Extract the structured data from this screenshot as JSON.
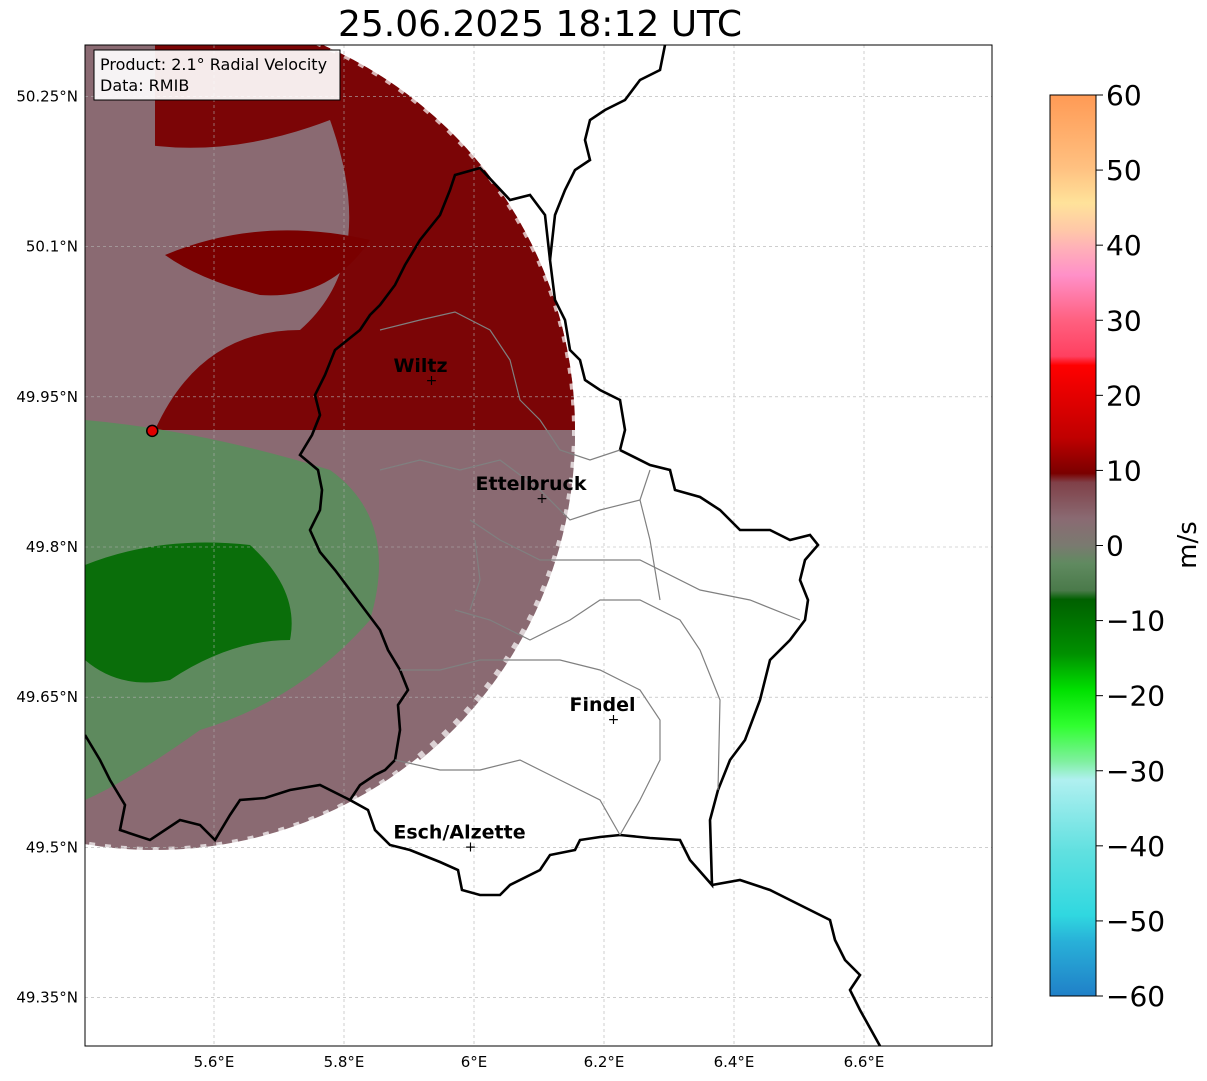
{
  "title": "25.06.2025 18:12 UTC",
  "info_box": {
    "product": "Product: 2.1° Radial Velocity",
    "source": "Data: RMIB"
  },
  "axes": {
    "x_ticks": [
      "5.6°E",
      "5.8°E",
      "6°E",
      "6.2°E",
      "6.4°E",
      "6.6°E"
    ],
    "x_values": [
      5.6,
      5.8,
      6.0,
      6.2,
      6.4,
      6.6
    ],
    "y_ticks": [
      "50.25°N",
      "50.1°N",
      "49.95°N",
      "49.8°N",
      "49.65°N",
      "49.5°N",
      "49.35°N"
    ],
    "y_values": [
      50.25,
      50.1,
      49.95,
      49.8,
      49.65,
      49.5,
      49.35
    ],
    "lon_range": [
      5.4,
      6.8
    ],
    "lat_range": [
      49.3,
      50.3
    ],
    "grid": true
  },
  "cities": [
    {
      "name": "Wiltz",
      "lon": 5.93,
      "lat": 49.966
    },
    {
      "name": "Ettelbruck",
      "lon": 6.1,
      "lat": 49.848
    },
    {
      "name": "Findel",
      "lon": 6.21,
      "lat": 49.627
    },
    {
      "name": "Esch/Alzette",
      "lon": 5.99,
      "lat": 49.5
    }
  ],
  "radar_site": {
    "lon": 5.505,
    "lat": 49.916
  },
  "colorbar": {
    "label": "m/s",
    "min": -60,
    "max": 60,
    "ticks": [
      "60",
      "50",
      "40",
      "30",
      "20",
      "10",
      "0",
      "−10",
      "−20",
      "−30",
      "−40",
      "−50",
      "−60"
    ],
    "tick_values": [
      60,
      50,
      40,
      30,
      20,
      10,
      0,
      -10,
      -20,
      -30,
      -40,
      -50,
      -60
    ]
  },
  "colors": {
    "outbound_strong": "#7a0000",
    "near_zero_pos": "#8a6a72",
    "near_zero_neg": "#5e8a5e",
    "inbound_strong": "#0a6e0a",
    "border": "#000000",
    "canton_lines": "#808080"
  }
}
